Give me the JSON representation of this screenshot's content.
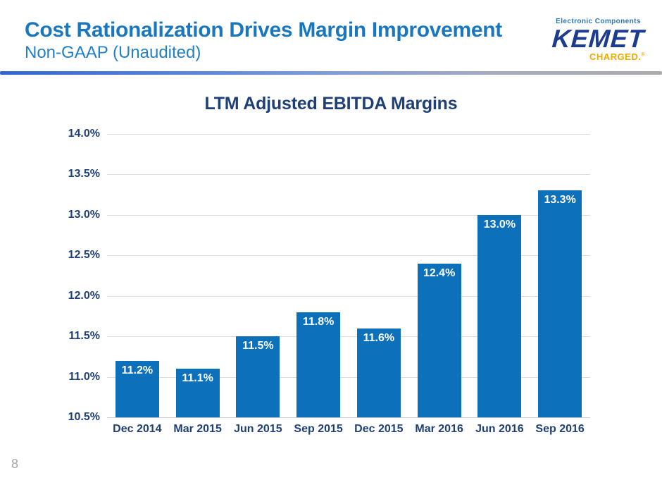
{
  "header": {
    "title": "Cost Rationalization Drives Margin Improvement",
    "subtitle": "Non-GAAP (Unaudited)"
  },
  "logo": {
    "tagline": "Electronic Components",
    "brand": "KEMET",
    "badge": "CHARGED.",
    "badge_mark": "®",
    "colors": {
      "tagline_blue": "#2E76B8",
      "brand_navy": "#1E3C8F",
      "badge_orange": "#F2A900"
    }
  },
  "chart_data": {
    "type": "bar",
    "title": "LTM Adjusted EBITDA Margins",
    "categories": [
      "Dec 2014",
      "Mar 2015",
      "Jun 2015",
      "Sep 2015",
      "Dec 2015",
      "Mar 2016",
      "Jun 2016",
      "Sep 2016"
    ],
    "values": [
      11.2,
      11.1,
      11.5,
      11.8,
      11.6,
      12.4,
      13.0,
      13.3
    ],
    "value_labels": [
      "11.2%",
      "11.1%",
      "11.5%",
      "11.8%",
      "11.6%",
      "12.4%",
      "13.0%",
      "13.3%"
    ],
    "y_ticks": [
      "14.0%",
      "13.5%",
      "13.0%",
      "12.5%",
      "12.0%",
      "11.5%",
      "11.0%",
      "10.5%"
    ],
    "ylim": [
      10.5,
      14.0
    ],
    "y_step": 0.5,
    "bar_color": "#0C70BB",
    "label_color": "#1F4077",
    "grid": true,
    "legend_position": "none",
    "xlabel": "",
    "ylabel": ""
  },
  "footer": {
    "page_number": "8"
  }
}
